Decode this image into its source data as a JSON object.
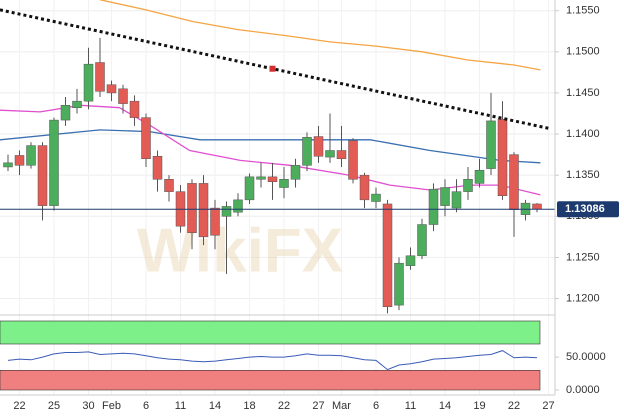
{
  "chart_data": {
    "type": "candlestick",
    "categories": [
      null,
      "22",
      null,
      null,
      "25",
      null,
      null,
      "30",
      null,
      "Feb",
      null,
      null,
      "6",
      null,
      null,
      "11",
      null,
      null,
      "14",
      null,
      null,
      "18",
      null,
      null,
      "22",
      null,
      null,
      "27",
      null,
      "Mar",
      null,
      null,
      "6",
      null,
      null,
      "11",
      null,
      null,
      "14",
      null,
      null,
      "19",
      null,
      null,
      "22",
      null,
      null,
      "27"
    ],
    "open": [
      1.136,
      1.1374,
      1.1362,
      1.1386,
      1.1313,
      1.1417,
      1.1432,
      1.144,
      1.1487,
      1.146,
      1.1455,
      1.144,
      1.142,
      1.1373,
      1.1345,
      1.133,
      1.134,
      1.134,
      1.131,
      1.13,
      1.1305,
      1.132,
      1.1345,
      1.1348,
      1.1335,
      1.1345,
      1.1362,
      1.1397,
      1.1372,
      1.138,
      1.1392,
      1.135,
      1.1318,
      1.1315,
      1.1192,
      1.124,
      1.1252,
      1.129,
      1.1313,
      1.131,
      1.133,
      1.134,
      1.1358,
      1.1418,
      1.1375,
      1.1302,
      1.1315,
      null
    ],
    "high": [
      1.1375,
      1.138,
      1.139,
      1.139,
      1.142,
      1.1445,
      1.1455,
      1.1505,
      1.1517,
      1.1465,
      1.146,
      1.1447,
      1.1425,
      1.138,
      1.135,
      1.1338,
      1.1345,
      1.135,
      1.132,
      1.1318,
      1.1328,
      1.1352,
      1.1365,
      1.1365,
      1.136,
      1.137,
      1.1402,
      1.141,
      1.1425,
      1.141,
      1.1395,
      1.1353,
      1.1335,
      1.132,
      1.125,
      1.1262,
      1.1297,
      1.134,
      1.1345,
      1.1345,
      1.136,
      1.137,
      1.145,
      1.144,
      1.1378,
      1.132,
      1.1316,
      null
    ],
    "low": [
      1.1355,
      1.135,
      1.1358,
      1.1295,
      1.1307,
      1.141,
      1.1425,
      1.143,
      1.1445,
      1.144,
      1.1425,
      1.141,
      1.136,
      1.133,
      1.1318,
      1.128,
      1.126,
      1.1265,
      1.126,
      1.123,
      1.13,
      1.1315,
      1.1335,
      1.132,
      1.1322,
      1.1335,
      1.1355,
      1.1365,
      1.1365,
      1.136,
      1.134,
      1.131,
      1.131,
      1.1182,
      1.1186,
      1.1235,
      1.1248,
      1.1282,
      1.13,
      1.1305,
      1.132,
      1.1335,
      1.135,
      1.132,
      1.1275,
      1.1295,
      1.1305,
      null
    ],
    "close": [
      1.1365,
      1.1362,
      1.1386,
      1.1313,
      1.1417,
      1.1435,
      1.144,
      1.1485,
      1.1452,
      1.145,
      1.1437,
      1.142,
      1.137,
      1.1345,
      1.133,
      1.1288,
      1.128,
      1.1275,
      1.1277,
      1.1312,
      1.132,
      1.1348,
      1.1348,
      1.1342,
      1.1345,
      1.1362,
      1.1396,
      1.1373,
      1.138,
      1.137,
      1.1345,
      1.132,
      1.1327,
      1.119,
      1.1243,
      1.1252,
      1.129,
      1.1333,
      1.1335,
      1.133,
      1.1345,
      1.1356,
      1.1416,
      1.1325,
      1.1308,
      1.1316,
      1.13086,
      null
    ],
    "up_color": "#4cae5c",
    "down_color": "#e35b55",
    "ylim": [
      1.118,
      1.1563
    ],
    "yticks": [
      {
        "value": 1.12,
        "label": "1.1200"
      },
      {
        "value": 1.125,
        "label": "1.1250"
      },
      {
        "value": 1.13,
        "label": "1.1300"
      },
      {
        "value": 1.135,
        "label": "1.1350"
      },
      {
        "value": 1.14,
        "label": "1.1400"
      },
      {
        "value": 1.145,
        "label": "1.1450"
      },
      {
        "value": 1.15,
        "label": "1.1500"
      },
      {
        "value": 1.155,
        "label": "1.1550"
      }
    ],
    "grid": true,
    "last_price": 1.13086,
    "overlays": [
      {
        "color": "#f5a442",
        "x": [
          8,
          12,
          16,
          20,
          24,
          28,
          32,
          36,
          40,
          44,
          46.3
        ],
        "values": [
          1.15634,
          1.1551,
          1.1537,
          1.1527,
          1.152,
          1.1512,
          1.1507,
          1.15,
          1.149,
          1.1484,
          1.1478
        ]
      },
      {
        "color": "#3a6fb0",
        "x": [
          -0.7,
          8,
          12.3,
          16.7,
          25.5,
          31.5,
          36.7,
          42.8,
          46.3
        ],
        "values": [
          1.1393,
          1.1405,
          1.1403,
          1.1393,
          1.1393,
          1.1393,
          1.138,
          1.1368,
          1.1365
        ]
      },
      {
        "color": "#e04fd0",
        "x": [
          -0.7,
          2.8,
          6.3,
          9.7,
          12.3,
          15.8,
          20.2,
          24.5,
          29.7,
          33.2,
          36.7,
          40.2,
          42.8,
          46.3
        ],
        "values": [
          1.1429,
          1.1427,
          1.1435,
          1.1432,
          1.1411,
          1.138,
          1.1368,
          1.1362,
          1.135,
          1.1338,
          1.1332,
          1.1338,
          1.1338,
          1.1326
        ]
      }
    ],
    "trendline": {
      "x": [
        -0.7,
        47
      ],
      "values": [
        1.1551,
        1.1407
      ],
      "color": "#111111"
    },
    "watermark": "WikiFX",
    "indicator": {
      "color": "#3a5bb8",
      "values": [
        45,
        47,
        46,
        50,
        55,
        57,
        57,
        58,
        54,
        55,
        56,
        55,
        52,
        49,
        47,
        46,
        44,
        43,
        44,
        46,
        48,
        50,
        51,
        50,
        50,
        52,
        55,
        53,
        53,
        52,
        49,
        46,
        45,
        31,
        38,
        40,
        43,
        47,
        48,
        49,
        51,
        53,
        54,
        60,
        49,
        50,
        49
      ],
      "ylim": [
        0,
        105
      ],
      "yticks": [
        {
          "value": 0,
          "label": "0.0000"
        },
        {
          "value": 50,
          "label": "50.0000"
        }
      ],
      "bands": [
        {
          "range": [
            70,
            105
          ],
          "color": "#7ef08a"
        },
        {
          "range": [
            0,
            30
          ],
          "color": "#f08080"
        }
      ]
    }
  }
}
